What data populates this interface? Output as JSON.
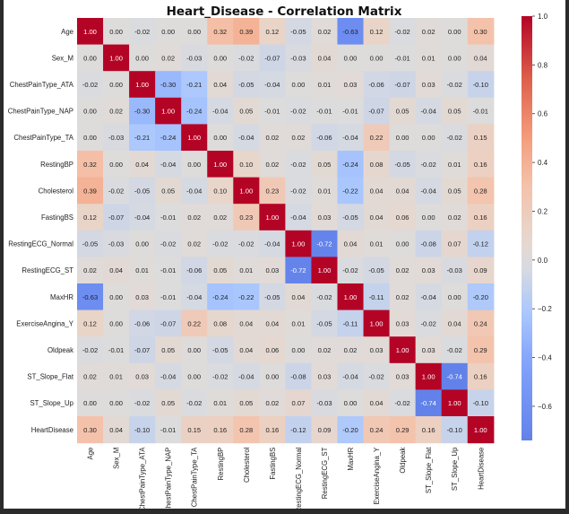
{
  "chart_data": {
    "type": "heatmap",
    "title": "Heart_Disease - Correlation Matrix",
    "labels": [
      "Age",
      "Sex_M",
      "ChestPainType_ATA",
      "ChestPainType_NAP",
      "ChestPainType_TA",
      "RestingBP",
      "Cholesterol",
      "FastingBS",
      "RestingECG_Normal",
      "RestingECG_ST",
      "MaxHR",
      "ExerciseAngina_Y",
      "Oldpeak",
      "ST_Slope_Flat",
      "ST_Slope_Up",
      "HeartDisease"
    ],
    "values": [
      [
        1.0,
        0.0,
        -0.02,
        0.0,
        -0.0,
        0.32,
        0.39,
        0.12,
        -0.05,
        0.02,
        -0.63,
        0.12,
        -0.02,
        0.02,
        -0.0,
        0.3
      ],
      [
        0.0,
        1.0,
        0.0,
        0.02,
        -0.03,
        -0.0,
        -0.02,
        -0.07,
        -0.03,
        0.04,
        -0.0,
        0.0,
        -0.01,
        0.01,
        0.0,
        0.04
      ],
      [
        -0.02,
        0.0,
        1.0,
        -0.3,
        -0.21,
        0.04,
        -0.05,
        -0.04,
        0.0,
        0.01,
        0.03,
        -0.06,
        -0.07,
        0.03,
        -0.02,
        -0.1
      ],
      [
        0.0,
        0.02,
        -0.3,
        1.0,
        -0.24,
        -0.04,
        0.05,
        -0.01,
        -0.02,
        -0.01,
        -0.01,
        -0.07,
        0.05,
        -0.04,
        0.05,
        -0.01
      ],
      [
        -0.0,
        -0.03,
        -0.21,
        -0.24,
        1.0,
        0.0,
        -0.04,
        0.02,
        0.02,
        -0.06,
        -0.04,
        0.22,
        -0.0,
        -0.0,
        -0.02,
        0.15
      ],
      [
        0.32,
        -0.0,
        0.04,
        -0.04,
        0.0,
        1.0,
        0.1,
        0.02,
        -0.02,
        0.05,
        -0.24,
        0.08,
        -0.05,
        -0.02,
        0.01,
        0.16
      ],
      [
        0.39,
        -0.02,
        -0.05,
        0.05,
        -0.04,
        0.1,
        1.0,
        0.23,
        -0.02,
        0.01,
        -0.22,
        0.04,
        0.04,
        -0.04,
        0.05,
        0.28
      ],
      [
        0.12,
        -0.07,
        -0.04,
        -0.01,
        0.02,
        0.02,
        0.23,
        1.0,
        -0.04,
        0.03,
        -0.05,
        0.04,
        0.06,
        -0.0,
        0.02,
        0.16
      ],
      [
        -0.05,
        -0.03,
        0.0,
        -0.02,
        0.02,
        -0.02,
        -0.02,
        -0.04,
        1.0,
        -0.72,
        0.04,
        0.01,
        -0.0,
        -0.08,
        0.07,
        -0.12
      ],
      [
        0.02,
        0.04,
        0.01,
        -0.01,
        -0.06,
        0.05,
        0.01,
        0.03,
        -0.72,
        1.0,
        -0.02,
        -0.05,
        0.02,
        0.03,
        -0.03,
        0.09
      ],
      [
        -0.63,
        -0.0,
        0.03,
        -0.01,
        -0.04,
        -0.24,
        -0.22,
        -0.05,
        0.04,
        -0.02,
        1.0,
        -0.11,
        0.02,
        -0.04,
        -0.0,
        -0.2
      ],
      [
        0.12,
        0.0,
        -0.06,
        -0.07,
        0.22,
        0.08,
        0.04,
        0.04,
        0.01,
        -0.05,
        -0.11,
        1.0,
        0.03,
        -0.02,
        0.04,
        0.24
      ],
      [
        -0.02,
        -0.01,
        -0.07,
        0.05,
        -0.0,
        -0.05,
        0.04,
        0.06,
        -0.0,
        0.02,
        0.02,
        0.03,
        1.0,
        0.03,
        -0.02,
        0.29
      ],
      [
        0.02,
        0.01,
        0.03,
        -0.04,
        -0.0,
        -0.02,
        -0.04,
        -0.0,
        -0.08,
        0.03,
        -0.04,
        -0.02,
        0.03,
        1.0,
        -0.74,
        0.16
      ],
      [
        -0.0,
        0.0,
        -0.02,
        0.05,
        -0.02,
        0.01,
        0.05,
        0.02,
        0.07,
        -0.03,
        -0.0,
        0.04,
        -0.02,
        -0.74,
        1.0,
        -0.1
      ],
      [
        0.3,
        0.04,
        -0.1,
        -0.01,
        0.15,
        0.16,
        0.28,
        0.16,
        -0.12,
        0.09,
        -0.2,
        0.24,
        0.29,
        0.16,
        -0.1,
        1.0
      ]
    ],
    "colorbar": {
      "range": [
        -0.74,
        1.0
      ],
      "ticks": [
        "1.0",
        "0.8",
        "0.6",
        "0.4",
        "0.2",
        "0.0",
        "−0.2",
        "−0.4",
        "−0.6"
      ],
      "tick_values": [
        1.0,
        0.8,
        0.6,
        0.4,
        0.2,
        0.0,
        -0.2,
        -0.4,
        -0.6
      ],
      "colormap": "coolwarm",
      "min_color": "#6282ea",
      "mid_color": "#dddcdc",
      "max_color": "#b40426"
    },
    "annotations": true,
    "grid": false
  }
}
